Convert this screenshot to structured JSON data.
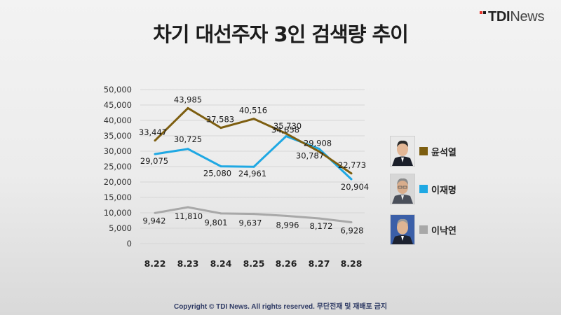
{
  "brand": {
    "logo_bold": "TDI",
    "logo_light": "News"
  },
  "title": "차기 대선주자 3인 검색량 추이",
  "footer": "Copyright © TDI News. All rights reserved. 무단전재 및 재배포 금지",
  "colors": {
    "yoon": "#7d5e10",
    "lee_jm": "#1fa8e3",
    "lee_ny": "#a8a8a8"
  },
  "chart_data": {
    "type": "line",
    "title": "차기 대선주자 3인 검색량 추이",
    "xlabel": "",
    "ylabel": "",
    "categories": [
      "8.22",
      "8.23",
      "8.24",
      "8.25",
      "8.26",
      "8.27",
      "8.28"
    ],
    "ylim": [
      0,
      50000
    ],
    "yticks": [
      "0",
      "5,000",
      "10,000",
      "15,000",
      "20,000",
      "25,000",
      "30,000",
      "35,000",
      "40,000",
      "45,000",
      "50,000"
    ],
    "grid": true,
    "legend": "right",
    "series": [
      {
        "name": "윤석열",
        "values": [
          33447,
          43985,
          37583,
          40516,
          35730,
          29908,
          22773
        ],
        "labels": [
          "33,447",
          "43,985",
          "37,583",
          "40,516",
          "35,730",
          "29,908",
          "22,773"
        ]
      },
      {
        "name": "이재명",
        "values": [
          29075,
          30725,
          25080,
          24961,
          34858,
          30787,
          20904
        ],
        "labels": [
          "29,075",
          "30,725",
          "25,080",
          "24,961",
          "34,858",
          "30,787",
          "20,904"
        ]
      },
      {
        "name": "이낙연",
        "values": [
          9942,
          11810,
          9801,
          9637,
          8996,
          8172,
          6928
        ],
        "labels": [
          "9,942",
          "11,810",
          "9,801",
          "9,637",
          "8,996",
          "8,172",
          "6,928"
        ]
      }
    ]
  }
}
